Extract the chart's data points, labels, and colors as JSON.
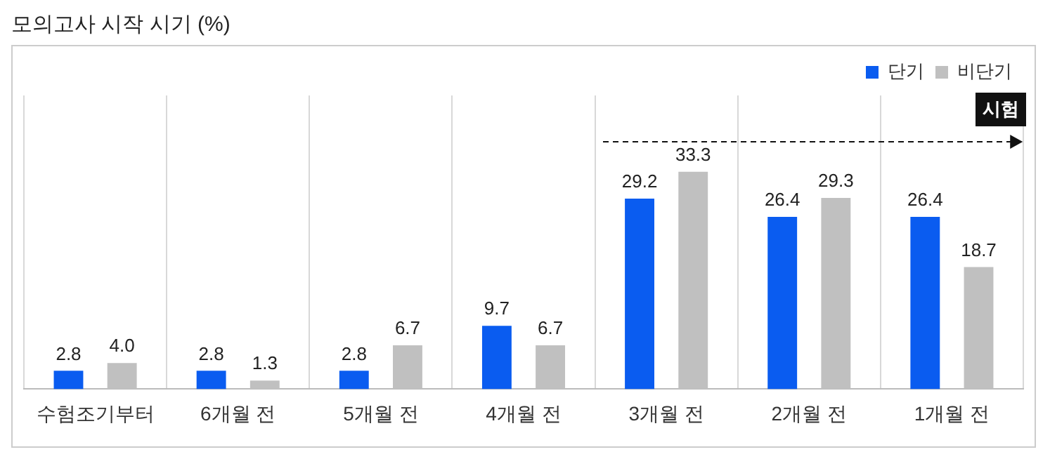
{
  "chart_data": {
    "type": "bar",
    "title": "모의고사 시작 시기 (%)",
    "categories": [
      "수험조기부터",
      "6개월 전",
      "5개월 전",
      "4개월 전",
      "3개월 전",
      "2개월 전",
      "1개월 전"
    ],
    "series": [
      {
        "name": "단기",
        "color": "#0a5cf0",
        "values": [
          2.8,
          2.8,
          2.8,
          9.7,
          29.2,
          26.4,
          26.4
        ],
        "value_labels": [
          "2.8",
          "2.8",
          "2.8",
          "9.7",
          "29.2",
          "26.4",
          "26.4"
        ]
      },
      {
        "name": "비단기",
        "color": "#c0c0c0",
        "values": [
          4.0,
          1.3,
          6.7,
          6.7,
          33.3,
          29.3,
          18.7
        ],
        "value_labels": [
          "4.0",
          "1.3",
          "6.7",
          "6.7",
          "33.3",
          "29.3",
          "18.7"
        ]
      }
    ],
    "legend": "top right",
    "grid": "x",
    "annotations": [
      "시험"
    ]
  }
}
